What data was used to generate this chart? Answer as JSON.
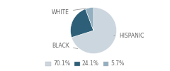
{
  "labels": [
    "WHITE",
    "HISPANIC",
    "BLACK"
  ],
  "values": [
    70.1,
    24.1,
    5.7
  ],
  "colors": [
    "#ccd6df",
    "#2d5f78",
    "#93afc0"
  ],
  "legend_labels": [
    "70.1%",
    "24.1%",
    "5.7%"
  ],
  "figsize": [
    2.4,
    1.0
  ],
  "dpi": 100,
  "background_color": "#ffffff",
  "startangle": 90,
  "label_fontsize": 5.5,
  "label_color": "#666666",
  "line_color": "#999999"
}
